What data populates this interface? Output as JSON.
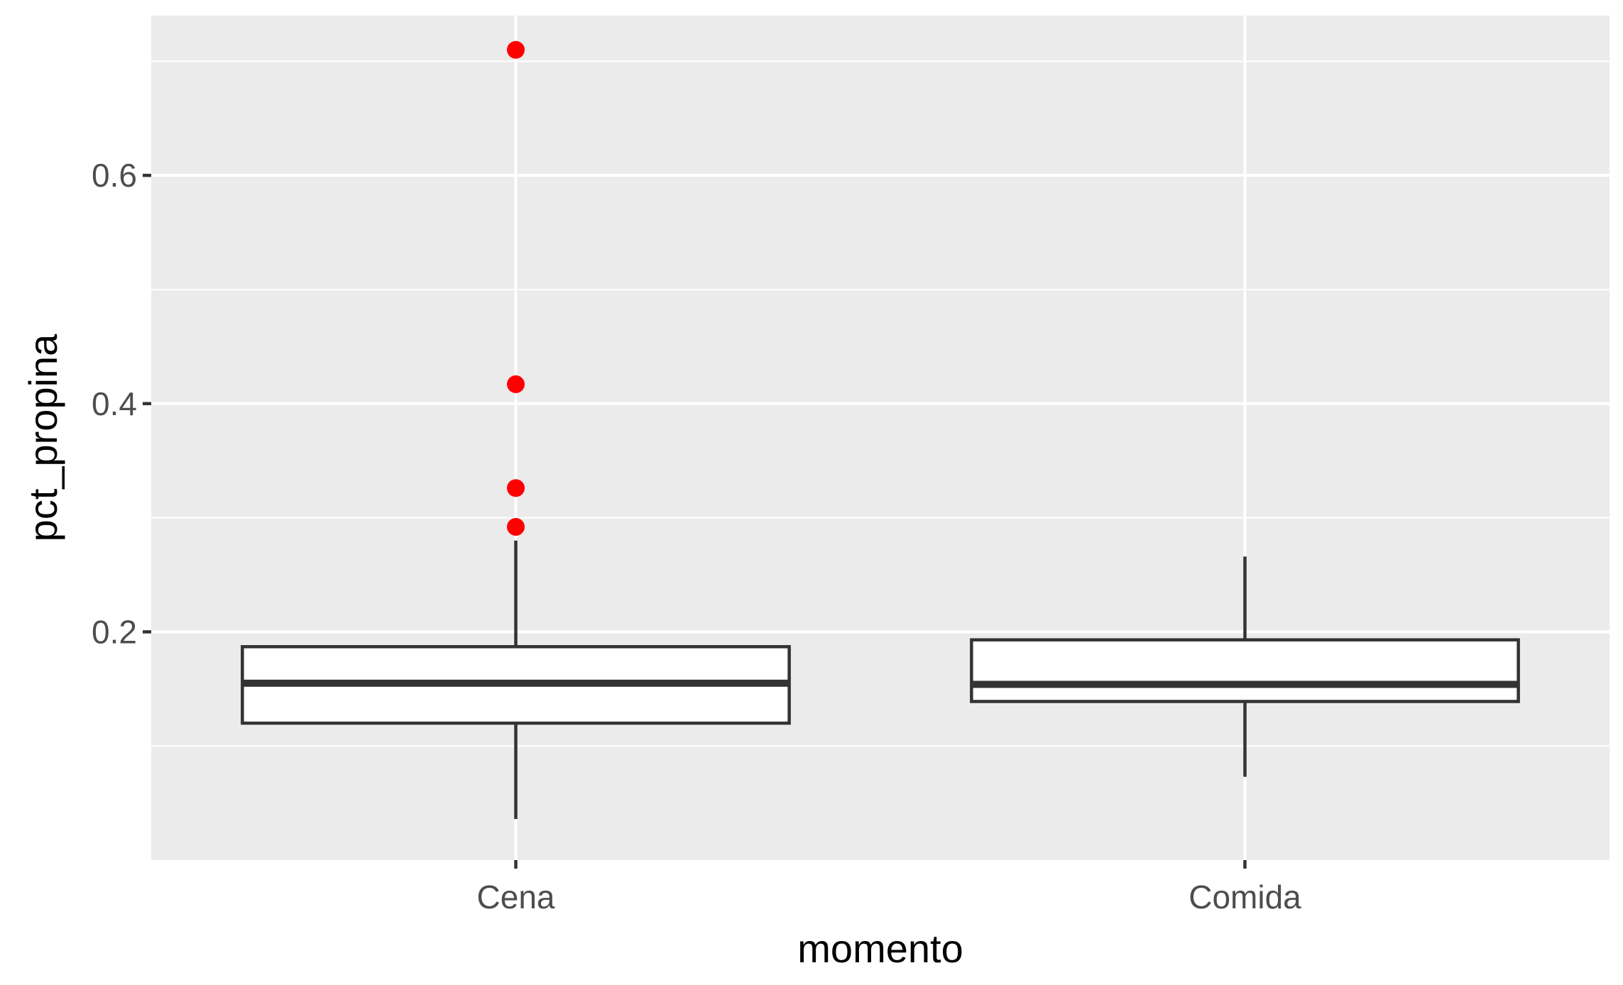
{
  "chart_data": {
    "type": "boxplot",
    "title": "",
    "xlabel": "momento",
    "ylabel": "pct_propina",
    "ylim": [
      0.0,
      0.74
    ],
    "y_ticks": [
      0.2,
      0.4,
      0.6
    ],
    "y_tick_labels": [
      "0.2",
      "0.4",
      "0.6"
    ],
    "y_minor_ticks": [
      0.1,
      0.3,
      0.5,
      0.7
    ],
    "categories": [
      "Cena",
      "Comida"
    ],
    "boxes": [
      {
        "category": "Cena",
        "lower_whisker": 0.036,
        "q1": 0.12,
        "median": 0.155,
        "q3": 0.187,
        "upper_whisker": 0.28,
        "outliers": [
          0.292,
          0.326,
          0.417,
          0.71
        ]
      },
      {
        "category": "Comida",
        "lower_whisker": 0.073,
        "q1": 0.139,
        "median": 0.154,
        "q3": 0.193,
        "upper_whisker": 0.266,
        "outliers": []
      }
    ],
    "grid": true,
    "colors": {
      "panel_background": "#ebebeb",
      "grid": "#ffffff",
      "box_fill": "#ffffff",
      "box_line": "#333333",
      "outlier": "#ff0000",
      "tick_text": "#4d4d4d",
      "axis_title": "#000000"
    }
  }
}
